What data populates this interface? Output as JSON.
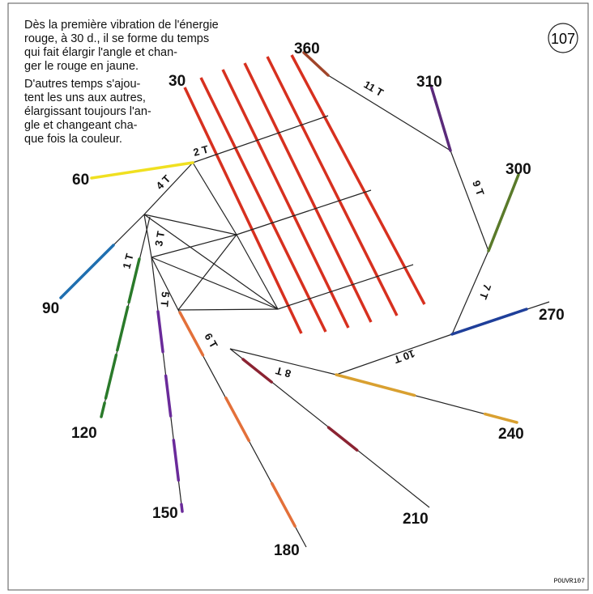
{
  "intro": [
    "Dès la première vibration de l'énergie",
    "rouge, à 30 d., il se forme du temps",
    "qui fait élargir l'angle et chan-",
    "ger le rouge en jaune.",
    "D'autres temps s'ajou-",
    "tent les uns aux autres,",
    "élargissant toujours l'an-",
    "gle et changeant cha-",
    "que fois la couleur."
  ],
  "page_number": "107",
  "angles": {
    "a30": "30",
    "a60": "60",
    "a90": "90",
    "a120": "120",
    "a150": "150",
    "a180": "180",
    "a210": "210",
    "a240": "240",
    "a270": "270",
    "a300": "300",
    "a310": "310",
    "a360": "360"
  },
  "times": {
    "t1": "1 T",
    "t2": "2 T",
    "t3": "3 T",
    "t4": "4 T",
    "t5": "5 T",
    "t6": "6 T",
    "t7": "7 T",
    "t8": "8 T",
    "t9": "9 T",
    "t10": "10 T",
    "t11": "11 T"
  },
  "code": "POUVR107"
}
